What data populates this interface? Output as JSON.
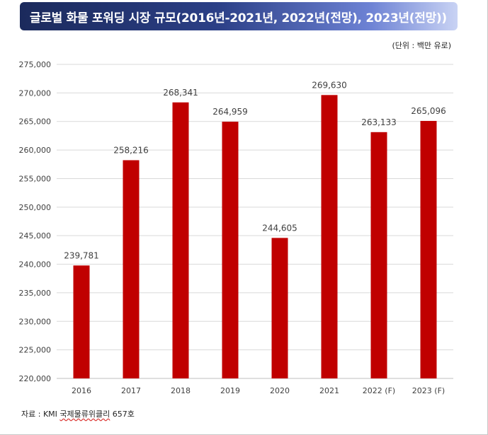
{
  "title": "글로벌 화물 포워딩 시장 규모(2016년-2021년, 2022년(전망), 2023년(전망))",
  "unit_label": "(단위 : 백만 유로)",
  "source_prefix": "자료 : KMI ",
  "source_name": "국제물류위클리",
  "source_suffix": " 657호",
  "chart_data": {
    "type": "bar",
    "categories": [
      "2016",
      "2017",
      "2018",
      "2019",
      "2020",
      "2021",
      "2022 (F)",
      "2023 (F)"
    ],
    "values": [
      239781,
      258216,
      268341,
      264959,
      244605,
      269630,
      263133,
      265096
    ],
    "value_labels": [
      "239,781",
      "258,216",
      "268,341",
      "264,959",
      "244,605",
      "269,630",
      "263,133",
      "265,096"
    ],
    "ylim": [
      220000,
      275000
    ],
    "yticks": [
      220000,
      225000,
      230000,
      235000,
      240000,
      245000,
      250000,
      255000,
      260000,
      265000,
      270000,
      275000
    ],
    "ytick_labels": [
      "220,000",
      "225,000",
      "230,000",
      "235,000",
      "240,000",
      "245,000",
      "250,000",
      "255,000",
      "260,000",
      "265,000",
      "270,000",
      "275,000"
    ],
    "grid": true,
    "bar_color": "#c00000",
    "grid_color": "#d9d9d9"
  }
}
